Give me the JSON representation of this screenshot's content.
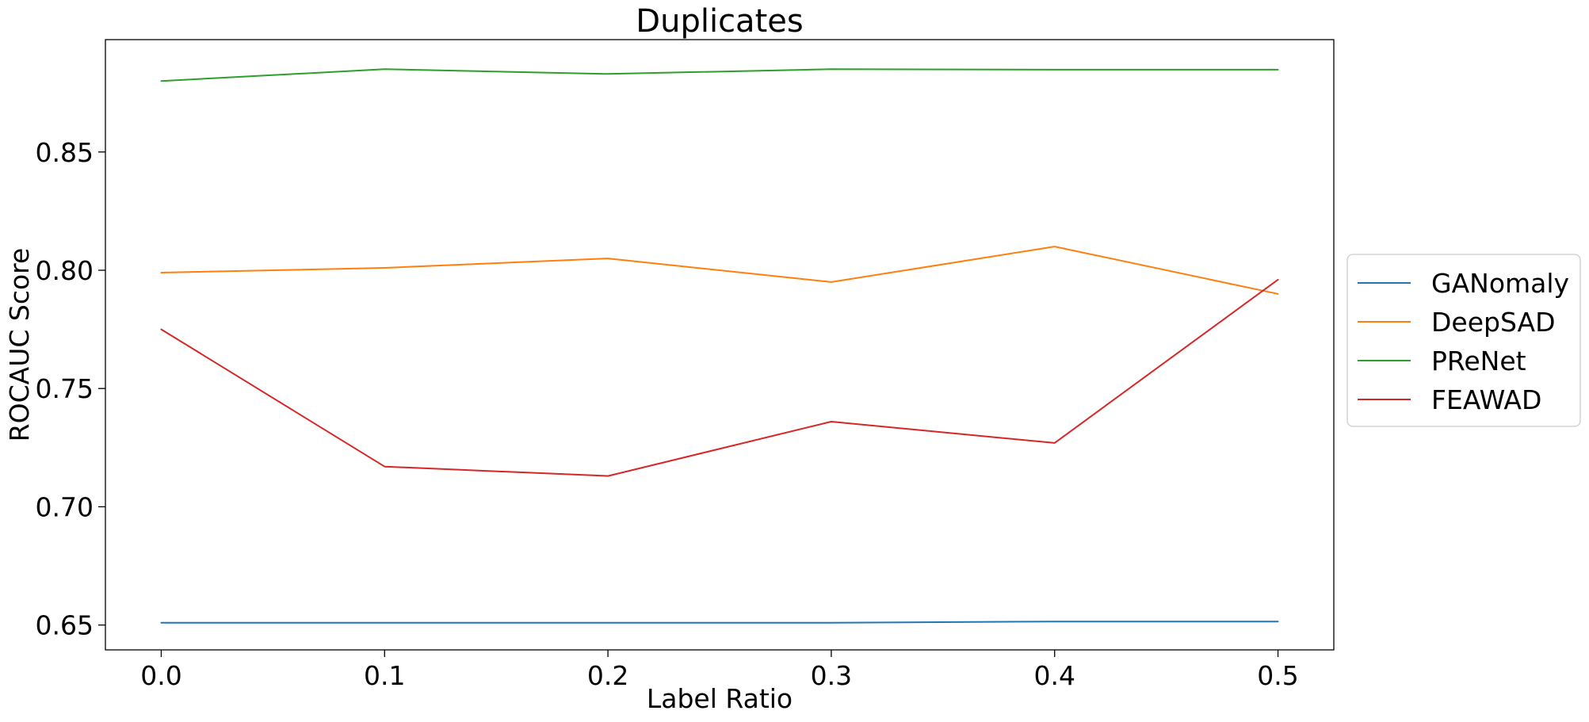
{
  "chart_data": {
    "type": "line",
    "title": "Duplicates",
    "xlabel": "Label Ratio",
    "ylabel": "ROCAUC Score",
    "x": [
      0.0,
      0.1,
      0.2,
      0.3,
      0.4,
      0.5
    ],
    "x_tick_labels": [
      "0.0",
      "0.1",
      "0.2",
      "0.3",
      "0.4",
      "0.5"
    ],
    "y_ticks": [
      0.65,
      0.7,
      0.75,
      0.8,
      0.85
    ],
    "y_tick_labels": [
      "0.65",
      "0.70",
      "0.75",
      "0.80",
      "0.85"
    ],
    "xlim": [
      -0.025,
      0.525
    ],
    "ylim": [
      0.6395,
      0.8975
    ],
    "grid": false,
    "legend_position": "center-right-outside",
    "series": [
      {
        "name": "GANomaly",
        "color": "#1f77b4",
        "values": [
          0.651,
          0.651,
          0.651,
          0.651,
          0.6515,
          0.6515
        ]
      },
      {
        "name": "DeepSAD",
        "color": "#ff7f0e",
        "values": [
          0.799,
          0.801,
          0.805,
          0.795,
          0.81,
          0.79
        ]
      },
      {
        "name": "PReNet",
        "color": "#2ca02c",
        "values": [
          0.88,
          0.885,
          0.883,
          0.885,
          0.8848,
          0.8848
        ]
      },
      {
        "name": "FEAWAD",
        "color": "#d62728",
        "values": [
          0.775,
          0.717,
          0.713,
          0.736,
          0.727,
          0.796
        ]
      }
    ]
  }
}
